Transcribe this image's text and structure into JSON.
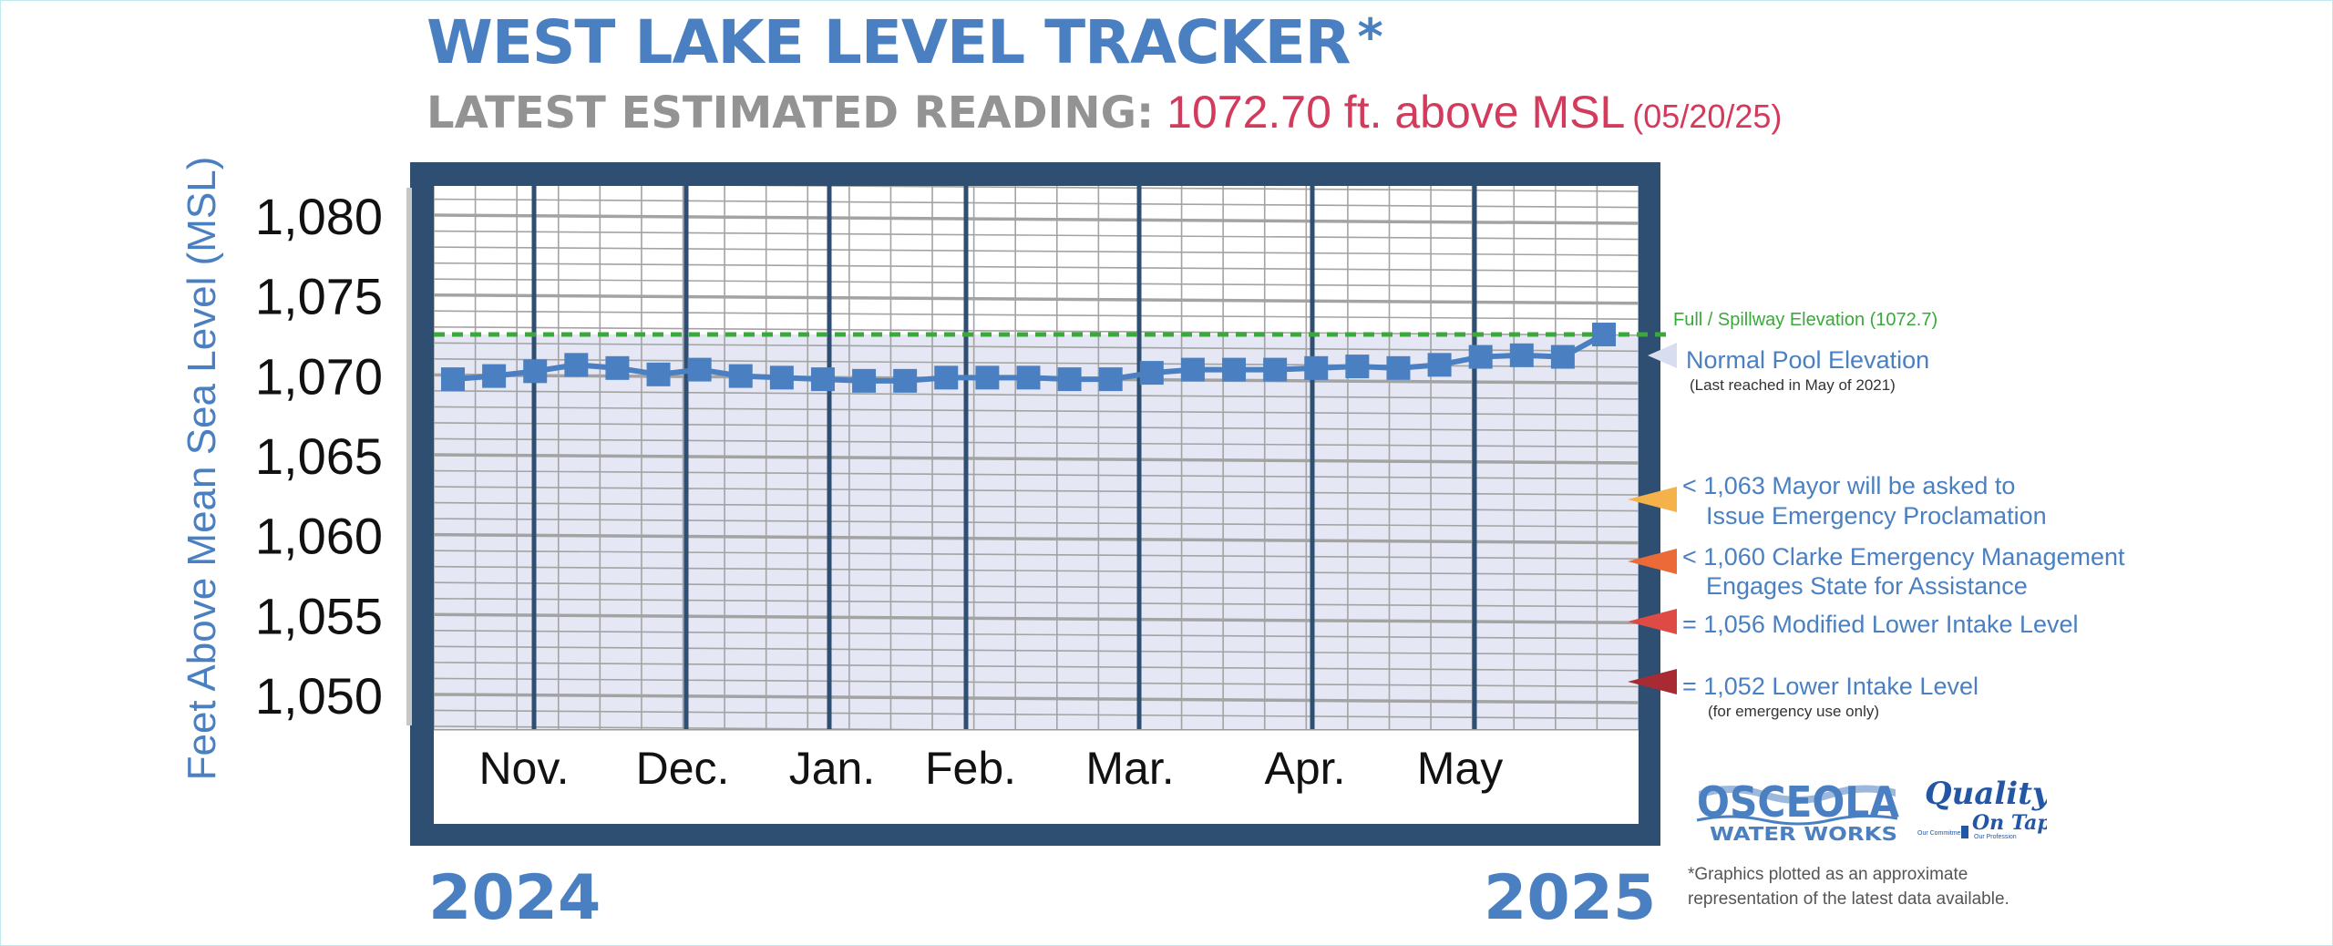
{
  "title": "WEST LAKE LEVEL TRACKER",
  "title_asterisk": "*",
  "subtitle": {
    "label": "LATEST ESTIMATED READING:",
    "value": "1072.70 ft. above MSL",
    "date": "(05/20/25)"
  },
  "years": {
    "start": "2024",
    "end": "2025"
  },
  "logo": {
    "osceola": "OSCEOLA",
    "water_works": "WATER WORKS",
    "quality": "Quality",
    "on_tap": "On Tap!",
    "tagline_left": "Our Commitment",
    "tagline_right": "Our Profession"
  },
  "footnote": {
    "line1": "*Graphics plotted as an approximate",
    "line2": "representation of the latest data available."
  },
  "colors": {
    "brand_blue": "#4a80c1",
    "frame": "#2f4f72",
    "series": "#4a80c1",
    "spillway": "#3aa83a",
    "reading_red": "#d23b5b",
    "plot_fill": "#e5e8f4",
    "grid": "#a3a3a3"
  },
  "chart_data": {
    "type": "line",
    "ylabel": "Feet Above Mean Sea Level (MSL)",
    "xlabel": "",
    "ylim": [
      1048,
      1082
    ],
    "y_ticks": [
      1080,
      1075,
      1070,
      1065,
      1060,
      1055,
      1050
    ],
    "y_tick_labels": [
      "1,080",
      "1,075",
      "1,070",
      "1,065",
      "1,060",
      "1,055",
      "1,050"
    ],
    "months": [
      "Nov.",
      "Dec.",
      "Jan.",
      "Feb.",
      "Mar.",
      "Apr.",
      "May"
    ],
    "grid": true,
    "series": [
      {
        "values": [
          1069.9,
          1070.1,
          1070.4,
          1070.8,
          1070.6,
          1070.2,
          1070.5,
          1070.1,
          1070.0,
          1069.9,
          1069.8,
          1069.8,
          1070.0,
          1070.0,
          1070.0,
          1069.9,
          1069.9,
          1070.3,
          1070.5,
          1070.5,
          1070.5,
          1070.6,
          1070.7,
          1070.6,
          1070.8,
          1071.3,
          1071.4,
          1071.3,
          1072.7
        ]
      }
    ],
    "thresholds": [
      {
        "value": 1072.7,
        "label": "Full / Spillway Elevation (1072.7)"
      },
      {
        "value": 1071.0,
        "label": "Normal Pool Elevation",
        "note": "(Last reached in May of 2021)"
      },
      {
        "value": 1063,
        "label_line1": "< 1,063 Mayor will be asked to",
        "label_line2": "Issue Emergency Proclamation",
        "color": "#f6b24a"
      },
      {
        "value": 1060,
        "label_line1": "< 1,060 Clarke Emergency Management",
        "label_line2": "Engages State for Assistance",
        "color": "#ec6a37"
      },
      {
        "value": 1056,
        "label_line1": "= 1,056 Modified Lower Intake Level",
        "color": "#e04a45"
      },
      {
        "value": 1052,
        "label_line1": "= 1,052 Lower Intake Level",
        "label_line2": "(for emergency use only)",
        "color": "#a82a33"
      }
    ]
  }
}
